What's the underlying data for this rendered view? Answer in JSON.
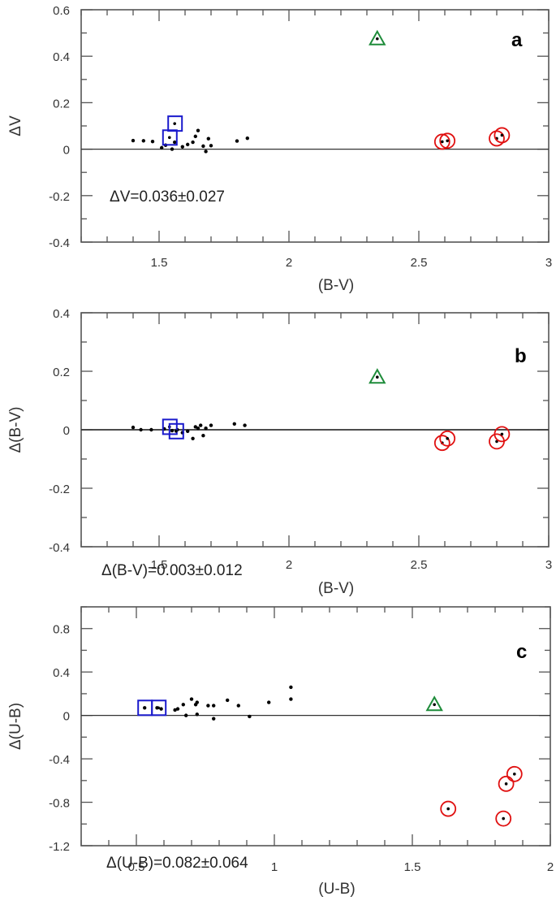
{
  "figure": {
    "colors": {
      "axis": "#555555",
      "zero_line": "#333333",
      "points": "#000000",
      "square": "#1a1acc",
      "triangle": "#1e8c3a",
      "circle": "#e01010"
    }
  },
  "chart_data": [
    {
      "type": "scatter",
      "panel_label": "a",
      "title": "",
      "xlabel": "(B-V)",
      "ylabel": "ΔV",
      "xlim": [
        1.2,
        3.0
      ],
      "ylim": [
        -0.4,
        0.6
      ],
      "xticks": [
        1.5,
        2,
        2.5,
        3
      ],
      "xtick_labels": [
        "1.5",
        "2",
        "2.5",
        "3"
      ],
      "yticks": [
        -0.4,
        -0.2,
        0,
        0.2,
        0.4,
        0.6
      ],
      "ytick_labels": [
        "-0.4",
        "-0.2",
        "0",
        "0.2",
        "0.4",
        "0.6"
      ],
      "x_minor_step": 0.1,
      "y_minor_step": 0.1,
      "zero_line": true,
      "grid": false,
      "annotation": "ΔV=0.036±0.027",
      "series": [
        {
          "name": "stars",
          "marker": "dot",
          "points": [
            [
              1.4,
              0.037
            ],
            [
              1.44,
              0.036
            ],
            [
              1.475,
              0.033
            ],
            [
              1.51,
              0.006
            ],
            [
              1.525,
              0.017
            ],
            [
              1.55,
              0.0
            ],
            [
              1.56,
              0.03
            ],
            [
              1.59,
              0.01
            ],
            [
              1.61,
              0.02
            ],
            [
              1.63,
              0.03
            ],
            [
              1.64,
              0.055
            ],
            [
              1.65,
              0.08
            ],
            [
              1.67,
              0.013
            ],
            [
              1.68,
              -0.01
            ],
            [
              1.69,
              0.045
            ],
            [
              1.7,
              0.015
            ],
            [
              1.8,
              0.035
            ],
            [
              1.84,
              0.047
            ]
          ]
        },
        {
          "name": "blue squares",
          "marker": "square",
          "points": [
            [
              1.54,
              0.05
            ],
            [
              1.56,
              0.11
            ]
          ]
        },
        {
          "name": "green triangle",
          "marker": "triangle",
          "points": [
            [
              2.34,
              0.475
            ]
          ]
        },
        {
          "name": "red circles",
          "marker": "circle",
          "points": [
            [
              2.59,
              0.032
            ],
            [
              2.61,
              0.036
            ],
            [
              2.8,
              0.046
            ],
            [
              2.82,
              0.06
            ]
          ]
        }
      ]
    },
    {
      "type": "scatter",
      "panel_label": "b",
      "title": "",
      "xlabel": "(B-V)",
      "ylabel": "Δ(B-V)",
      "xlim": [
        1.2,
        3.0
      ],
      "ylim": [
        -0.4,
        0.4
      ],
      "xticks": [
        1.5,
        2,
        2.5,
        3
      ],
      "xtick_labels": [
        "1.5",
        "2",
        "2.5",
        "3"
      ],
      "yticks": [
        -0.4,
        -0.2,
        0,
        0.2,
        0.4
      ],
      "ytick_labels": [
        "-0.4",
        "-0.2",
        "0",
        "0.2",
        "0.4"
      ],
      "x_minor_step": 0.1,
      "y_minor_step": 0.1,
      "zero_line": true,
      "grid": false,
      "annotation": "Δ(B-V)=0.003±0.012",
      "series": [
        {
          "name": "stars",
          "marker": "dot",
          "points": [
            [
              1.4,
              0.008
            ],
            [
              1.43,
              0.0
            ],
            [
              1.47,
              0.0
            ],
            [
              1.52,
              0.003
            ],
            [
              1.55,
              -0.003
            ],
            [
              1.57,
              0.0
            ],
            [
              1.59,
              -0.01
            ],
            [
              1.61,
              -0.005
            ],
            [
              1.63,
              -0.03
            ],
            [
              1.64,
              0.01
            ],
            [
              1.65,
              0.005
            ],
            [
              1.66,
              0.015
            ],
            [
              1.67,
              -0.02
            ],
            [
              1.68,
              0.005
            ],
            [
              1.7,
              0.015
            ],
            [
              1.79,
              0.02
            ],
            [
              1.83,
              0.015
            ]
          ]
        },
        {
          "name": "blue squares",
          "marker": "square",
          "points": [
            [
              1.54,
              0.01
            ],
            [
              1.565,
              -0.005
            ]
          ]
        },
        {
          "name": "green triangle",
          "marker": "triangle",
          "points": [
            [
              2.34,
              0.18
            ]
          ]
        },
        {
          "name": "red circles",
          "marker": "circle",
          "points": [
            [
              2.59,
              -0.045
            ],
            [
              2.61,
              -0.03
            ],
            [
              2.8,
              -0.04
            ],
            [
              2.82,
              -0.015
            ]
          ]
        }
      ]
    },
    {
      "type": "scatter",
      "panel_label": "c",
      "title": "",
      "xlabel": "(U-B)",
      "ylabel": "Δ(U-B)",
      "xlim": [
        0.3,
        2.0
      ],
      "ylim": [
        -1.2,
        1.0
      ],
      "xticks": [
        0.5,
        1,
        1.5,
        2
      ],
      "xtick_labels": [
        "0.5",
        "1",
        "1.5",
        "2"
      ],
      "yticks": [
        -1.2,
        -0.8,
        -0.4,
        0,
        0.4,
        0.8
      ],
      "ytick_labels": [
        "-1.2",
        "-0.8",
        "-0.4",
        "0",
        "0.4",
        "0.8"
      ],
      "x_minor_step": 0.1,
      "y_minor_step": 0.2,
      "zero_line": true,
      "grid": false,
      "annotation": "Δ(U-B)=0.082±0.064",
      "series": [
        {
          "name": "stars",
          "marker": "dot",
          "points": [
            [
              0.53,
              0.07
            ],
            [
              0.575,
              0.07
            ],
            [
              0.59,
              0.06
            ],
            [
              0.64,
              0.05
            ],
            [
              0.65,
              0.06
            ],
            [
              0.67,
              0.1
            ],
            [
              0.68,
              0.0
            ],
            [
              0.7,
              0.15
            ],
            [
              0.715,
              0.1
            ],
            [
              0.72,
              0.01
            ],
            [
              0.72,
              0.12
            ],
            [
              0.76,
              0.09
            ],
            [
              0.78,
              0.09
            ],
            [
              0.78,
              -0.03
            ],
            [
              0.83,
              0.14
            ],
            [
              0.87,
              0.09
            ],
            [
              0.91,
              -0.01
            ],
            [
              0.98,
              0.12
            ],
            [
              1.06,
              0.26
            ],
            [
              1.06,
              0.15
            ]
          ]
        },
        {
          "name": "blue squares",
          "marker": "square",
          "points": [
            [
              0.53,
              0.07
            ],
            [
              0.58,
              0.07
            ]
          ]
        },
        {
          "name": "green triangle",
          "marker": "triangle",
          "points": [
            [
              1.58,
              0.1
            ]
          ]
        },
        {
          "name": "red circles",
          "marker": "circle",
          "points": [
            [
              1.63,
              -0.86
            ],
            [
              1.83,
              -0.95
            ],
            [
              1.84,
              -0.63
            ],
            [
              1.87,
              -0.54
            ]
          ]
        }
      ]
    }
  ]
}
